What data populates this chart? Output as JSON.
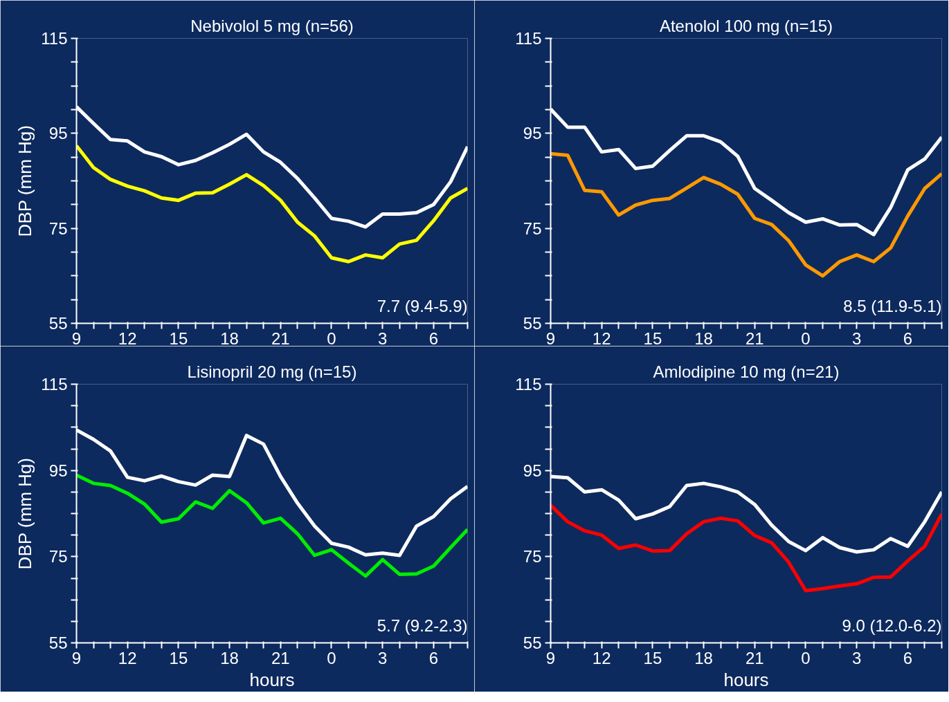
{
  "chart_data": [
    {
      "type": "line",
      "title": "Nebivolol 5 mg (n=56)",
      "ylabel": "DBP (mm Hg)",
      "categories": [
        "9",
        null,
        null,
        "12",
        null,
        null,
        "15",
        null,
        null,
        "18",
        null,
        null,
        "21",
        null,
        null,
        "0",
        null,
        null,
        "3",
        null,
        null,
        "6",
        null,
        null
      ],
      "ylim": [
        55,
        115
      ],
      "yticks": [
        55,
        {
          "value": 60,
          "label": null
        },
        {
          "value": 65,
          "label": null
        },
        {
          "value": 70,
          "label": null
        },
        75,
        {
          "value": 80,
          "label": null
        },
        {
          "value": 85,
          "label": null
        },
        {
          "value": 90,
          "label": null
        },
        95,
        {
          "value": 100,
          "label": null
        },
        {
          "value": 105,
          "label": null
        },
        {
          "value": 110,
          "label": null
        },
        115
      ],
      "series": [
        {
          "color": "#ffffff",
          "values": [
            100.6,
            97.1,
            93.7,
            93.4,
            91.1,
            90.1,
            88.4,
            89.3,
            90.9,
            92.7,
            94.8,
            91.1,
            88.9,
            85.5,
            81.4,
            77.1,
            76.5,
            75.3,
            78,
            78,
            78.3,
            80,
            84.8,
            92.2
          ]
        },
        {
          "color": "#ffff00",
          "values": [
            92.4,
            87.8,
            85.3,
            83.9,
            82.9,
            81.4,
            80.9,
            82.4,
            82.5,
            84.3,
            86.3,
            84,
            80.9,
            76.3,
            73.4,
            68.8,
            68,
            69.4,
            68.8,
            71.7,
            72.5,
            76.6,
            81.4,
            83.4
          ]
        }
      ],
      "annotations": [
        "7.7 (9.4-5.9)"
      ]
    },
    {
      "type": "line",
      "title": "Atenolol 100 mg (n=15)",
      "categories": [
        "9",
        null,
        null,
        "12",
        null,
        null,
        "15",
        null,
        null,
        "18",
        null,
        null,
        "21",
        null,
        null,
        "0",
        null,
        null,
        "3",
        null,
        null,
        "6",
        null,
        null
      ],
      "ylim": [
        55,
        115
      ],
      "yticks": [
        55,
        {
          "value": 60,
          "label": null
        },
        {
          "value": 65,
          "label": null
        },
        {
          "value": 70,
          "label": null
        },
        75,
        {
          "value": 80,
          "label": null
        },
        {
          "value": 85,
          "label": null
        },
        {
          "value": 90,
          "label": null
        },
        95,
        {
          "value": 100,
          "label": null
        },
        {
          "value": 105,
          "label": null
        },
        {
          "value": 110,
          "label": null
        },
        115
      ],
      "series": [
        {
          "color": "#ffffff",
          "values": [
            100.1,
            96.3,
            96.3,
            91.1,
            91.6,
            87.6,
            88.1,
            91.4,
            94.5,
            94.5,
            93.2,
            90.2,
            83.4,
            80.9,
            78.3,
            76.3,
            77,
            75.7,
            75.8,
            73.7,
            79.4,
            87.3,
            89.6,
            94.2
          ]
        },
        {
          "color": "#ff9900",
          "values": [
            90.7,
            90.4,
            83,
            82.7,
            77.8,
            79.9,
            80.9,
            81.3,
            83.5,
            85.7,
            84.3,
            82.2,
            77.1,
            75.8,
            72.4,
            67.3,
            65,
            68,
            69.4,
            68,
            70.9,
            77.6,
            83.4,
            86.5
          ]
        }
      ],
      "annotations": [
        "8.5 (11.9-5.1)"
      ]
    },
    {
      "type": "line",
      "title": "Lisinopril 20 mg (n=15)",
      "ylabel": "DBP (mm Hg)",
      "xlabel": "hours",
      "categories": [
        "9",
        null,
        null,
        "12",
        null,
        null,
        "15",
        null,
        null,
        "18",
        null,
        null,
        "21",
        null,
        null,
        "0",
        null,
        null,
        "3",
        null,
        null,
        "6",
        null,
        null
      ],
      "ylim": [
        55,
        115
      ],
      "yticks": [
        55,
        {
          "value": 60,
          "label": null
        },
        {
          "value": 65,
          "label": null
        },
        {
          "value": 70,
          "label": null
        },
        75,
        {
          "value": 80,
          "label": null
        },
        {
          "value": 85,
          "label": null
        },
        {
          "value": 90,
          "label": null
        },
        95,
        {
          "value": 100,
          "label": null
        },
        {
          "value": 105,
          "label": null
        },
        {
          "value": 110,
          "label": null
        },
        115
      ],
      "series": [
        {
          "color": "#ffffff",
          "values": [
            104.4,
            102.2,
            99.5,
            93.4,
            92.6,
            93.7,
            92.4,
            91.6,
            93.9,
            93.6,
            103.1,
            101.1,
            93.6,
            87.4,
            82.1,
            78.1,
            77.2,
            75.4,
            75.8,
            75.3,
            82.1,
            84.3,
            88.4,
            91.3
          ]
        },
        {
          "color": "#00ee00",
          "values": [
            93.9,
            92,
            91.5,
            89.7,
            87.2,
            83,
            83.8,
            87.7,
            86.2,
            90.3,
            87.5,
            82.8,
            83.9,
            80.3,
            75.3,
            76.6,
            73.5,
            70.5,
            74.3,
            70.9,
            71,
            72.8,
            77.1,
            81.3
          ]
        }
      ],
      "annotations": [
        "5.7 (9.2-2.3)"
      ]
    },
    {
      "type": "line",
      "title": "Amlodipine 10 mg (n=21)",
      "xlabel": "hours",
      "categories": [
        "9",
        null,
        null,
        "12",
        null,
        null,
        "15",
        null,
        null,
        "18",
        null,
        null,
        "21",
        null,
        null,
        "0",
        null,
        null,
        "3",
        null,
        null,
        "6",
        null,
        null
      ],
      "ylim": [
        55,
        115
      ],
      "yticks": [
        55,
        {
          "value": 60,
          "label": null
        },
        {
          "value": 65,
          "label": null
        },
        {
          "value": 70,
          "label": null
        },
        75,
        {
          "value": 80,
          "label": null
        },
        {
          "value": 85,
          "label": null
        },
        {
          "value": 90,
          "label": null
        },
        95,
        {
          "value": 100,
          "label": null
        },
        {
          "value": 105,
          "label": null
        },
        {
          "value": 110,
          "label": null
        },
        115
      ],
      "series": [
        {
          "color": "#ffffff",
          "values": [
            93.6,
            93.3,
            90,
            90.5,
            88.1,
            83.8,
            84.9,
            86.6,
            91.5,
            92,
            91.2,
            90,
            87.1,
            82.3,
            78.5,
            76.4,
            79.4,
            77.1,
            76.1,
            76.6,
            79.2,
            77.4,
            83.1,
            90
          ]
        },
        {
          "color": "#ff0000",
          "values": [
            86.9,
            83.1,
            81,
            80,
            76.9,
            77.7,
            76.3,
            76.4,
            80.3,
            83.1,
            83.9,
            83.3,
            79.9,
            78.2,
            73.7,
            67.1,
            67.6,
            68.2,
            68.7,
            70.2,
            70.3,
            74,
            77.4,
            84.9
          ]
        }
      ],
      "annotations": [
        "9.0 (12.0-6.2)"
      ]
    }
  ]
}
